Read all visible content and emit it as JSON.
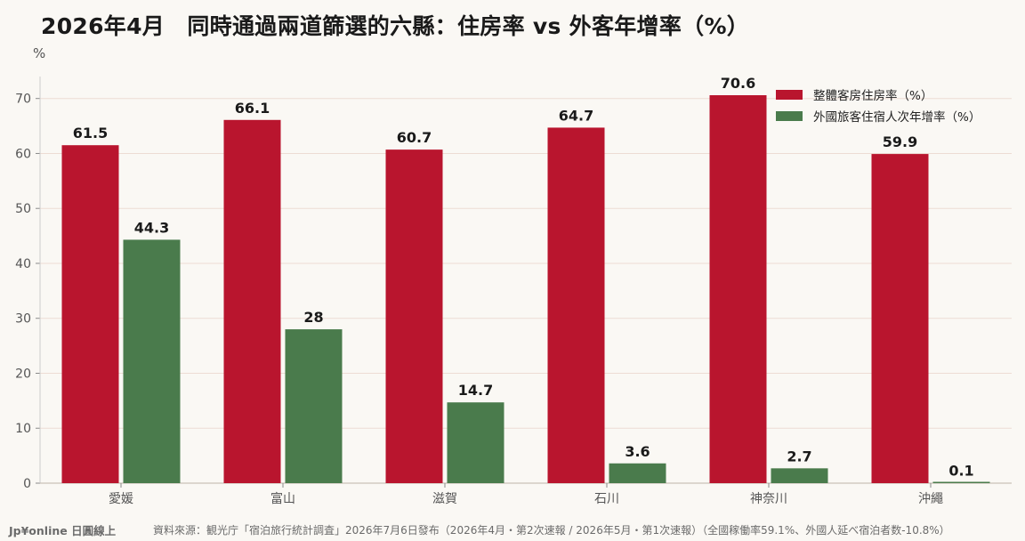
{
  "title": "2026年4月　同時通過兩道篩選的六縣：住房率 vs 外客年增率（%）",
  "footer": {
    "brand": "Jp¥online 日圓線上",
    "source": "資料來源：観光庁「宿泊旅行統計調査」2026年7月6日發布（2026年4月・第2次速報 / 2026年5月・第1次速報）（全國稼働率59.1%、外國人延べ宿泊者数-10.8%）"
  },
  "chart_data": {
    "type": "bar",
    "ylabel": "%",
    "ylim": [
      0,
      74
    ],
    "yticks": [
      0,
      10,
      20,
      30,
      40,
      50,
      60,
      70
    ],
    "grid": true,
    "legend_position": "top-right",
    "categories": [
      "愛媛",
      "富山",
      "滋賀",
      "石川",
      "神奈川",
      "沖繩"
    ],
    "series": [
      {
        "name": "整體客房住房率（%）",
        "color": "#b9152e",
        "values": [
          61.5,
          66.1,
          60.7,
          64.7,
          70.6,
          59.9
        ],
        "labels": [
          "61.5",
          "66.1",
          "60.7",
          "64.7",
          "70.6",
          "59.9"
        ]
      },
      {
        "name": "外國旅客住宿人次年增率（%）",
        "color": "#4a7b4c",
        "values": [
          44.3,
          28,
          14.7,
          3.6,
          2.7,
          0.1
        ],
        "labels": [
          "44.3",
          "28",
          "14.7",
          "3.6",
          "2.7",
          "0.1"
        ]
      }
    ]
  }
}
